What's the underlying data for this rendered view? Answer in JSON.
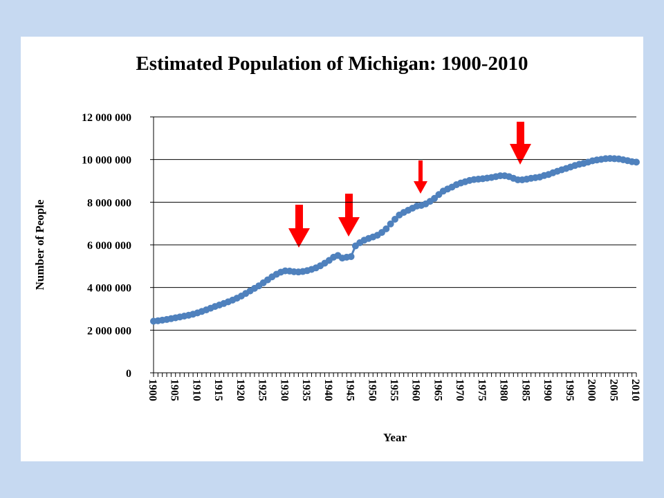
{
  "chart_data": {
    "type": "line",
    "title": "Estimated Population of Michigan: 1900-2010",
    "x_label": "Year",
    "y_label": "Number of People",
    "x": [
      1900,
      1901,
      1902,
      1903,
      1904,
      1905,
      1906,
      1907,
      1908,
      1909,
      1910,
      1911,
      1912,
      1913,
      1914,
      1915,
      1916,
      1917,
      1918,
      1919,
      1920,
      1921,
      1922,
      1923,
      1924,
      1925,
      1926,
      1927,
      1928,
      1929,
      1930,
      1931,
      1932,
      1933,
      1934,
      1935,
      1936,
      1937,
      1938,
      1939,
      1940,
      1941,
      1942,
      1943,
      1944,
      1945,
      1946,
      1947,
      1948,
      1949,
      1950,
      1951,
      1952,
      1953,
      1954,
      1955,
      1956,
      1957,
      1958,
      1959,
      1960,
      1961,
      1962,
      1963,
      1964,
      1965,
      1966,
      1967,
      1968,
      1969,
      1970,
      1971,
      1972,
      1973,
      1974,
      1975,
      1976,
      1977,
      1978,
      1979,
      1980,
      1981,
      1982,
      1983,
      1984,
      1985,
      1986,
      1987,
      1988,
      1989,
      1990,
      1991,
      1992,
      1993,
      1994,
      1995,
      1996,
      1997,
      1998,
      1999,
      2000,
      2001,
      2002,
      2003,
      2004,
      2005,
      2006,
      2007,
      2008,
      2009,
      2010
    ],
    "values": [
      2420000,
      2440000,
      2470000,
      2500000,
      2540000,
      2580000,
      2620000,
      2660000,
      2700000,
      2750000,
      2810000,
      2880000,
      2950000,
      3030000,
      3110000,
      3180000,
      3250000,
      3330000,
      3410000,
      3500000,
      3600000,
      3720000,
      3840000,
      3960000,
      4080000,
      4220000,
      4360000,
      4500000,
      4620000,
      4720000,
      4780000,
      4770000,
      4740000,
      4730000,
      4750000,
      4790000,
      4850000,
      4920000,
      5020000,
      5140000,
      5270000,
      5420000,
      5500000,
      5380000,
      5420000,
      5450000,
      5950000,
      6100000,
      6220000,
      6300000,
      6370000,
      6450000,
      6580000,
      6750000,
      6980000,
      7200000,
      7400000,
      7520000,
      7620000,
      7720000,
      7820000,
      7850000,
      7920000,
      8040000,
      8180000,
      8360000,
      8520000,
      8620000,
      8710000,
      8820000,
      8900000,
      8960000,
      9020000,
      9060000,
      9080000,
      9100000,
      9130000,
      9160000,
      9200000,
      9240000,
      9240000,
      9200000,
      9120000,
      9050000,
      9050000,
      9080000,
      9120000,
      9150000,
      9180000,
      9250000,
      9300000,
      9380000,
      9450000,
      9520000,
      9580000,
      9650000,
      9720000,
      9780000,
      9820000,
      9880000,
      9940000,
      9980000,
      10010000,
      10040000,
      10050000,
      10040000,
      10030000,
      9990000,
      9950000,
      9900000,
      9880000
    ],
    "color": "#4f81bd",
    "xlim": [
      1900,
      2010
    ],
    "xticks": [
      1900,
      1905,
      1910,
      1915,
      1920,
      1925,
      1930,
      1935,
      1940,
      1945,
      1950,
      1955,
      1960,
      1965,
      1970,
      1975,
      1980,
      1985,
      1990,
      1995,
      2000,
      2005,
      2010
    ],
    "ylim": [
      0,
      12000000
    ],
    "yticks": [
      0,
      {
        "value": 2000000,
        "label": "2 000 000"
      },
      {
        "value": 4000000,
        "label": "4 000 000"
      },
      {
        "value": 6000000,
        "label": "6 000 000"
      },
      {
        "value": 8000000,
        "label": "8 000 000"
      },
      {
        "value": 10000000,
        "label": "10 000 000"
      },
      {
        "value": 12000000,
        "label": "12 000 000"
      }
    ],
    "grid": true
  }
}
